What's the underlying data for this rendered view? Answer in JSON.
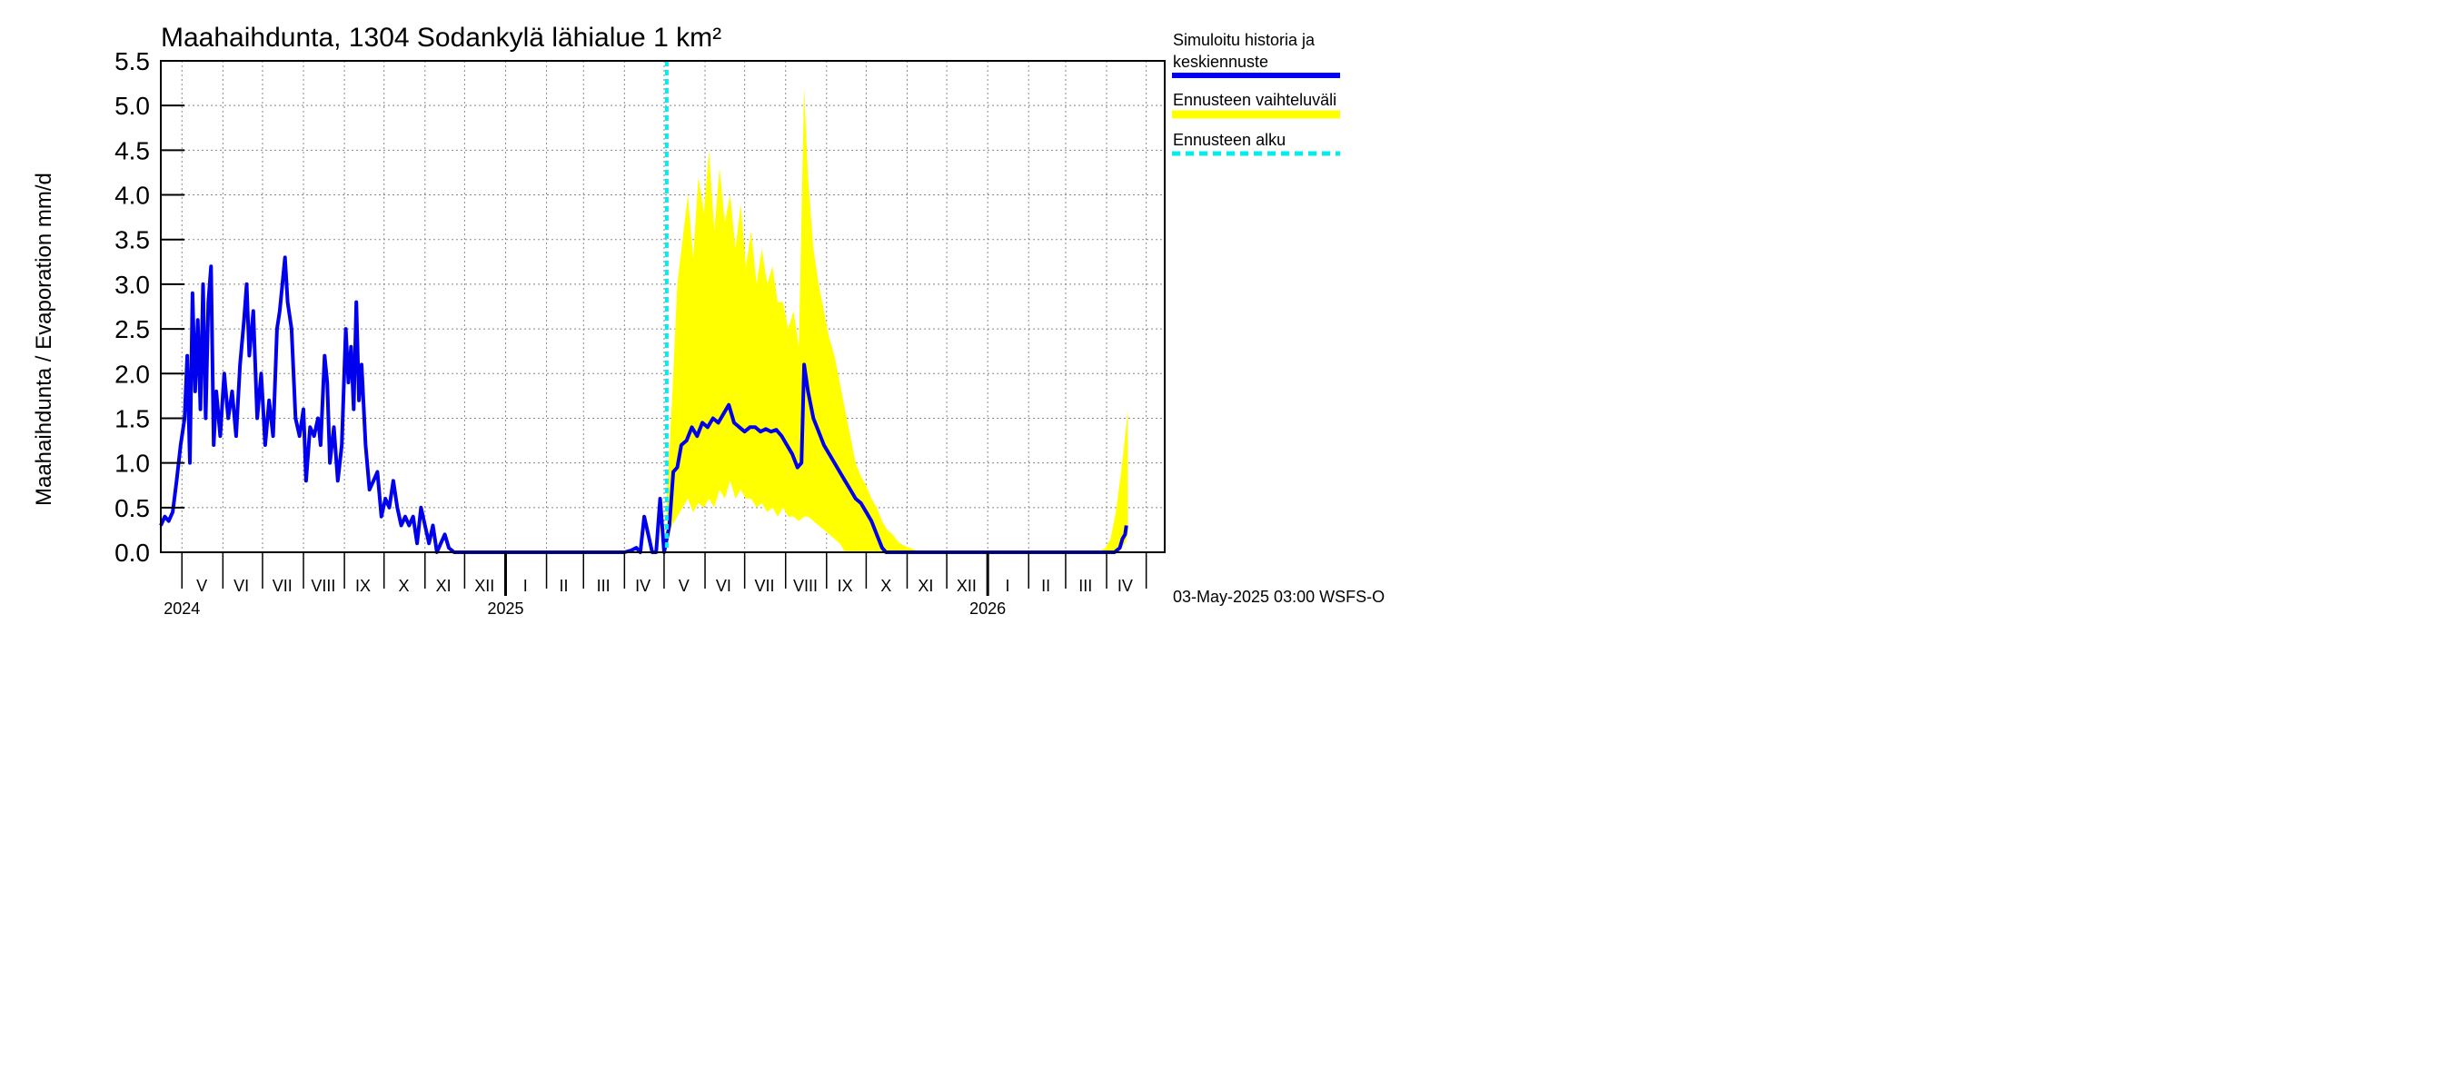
{
  "chart_data": {
    "type": "line",
    "title": "Maahaihdunta, 1304 Sodankylä lähialue 1 km²",
    "ylabel": "Maahaihdunta / Evaporation   mm/d",
    "ylim": [
      0,
      5.5
    ],
    "y_ticks": [
      "0.0",
      "0.5",
      "1.0",
      "1.5",
      "2.0",
      "2.5",
      "3.0",
      "3.5",
      "4.0",
      "4.5",
      "5.0",
      "5.5"
    ],
    "x_start": "2024-04-15",
    "x_end": "2026-05-15",
    "month_labels": [
      {
        "label": "V",
        "date": "2024-05-16"
      },
      {
        "label": "VI",
        "date": "2024-06-15"
      },
      {
        "label": "VII",
        "date": "2024-07-16"
      },
      {
        "label": "VIII",
        "date": "2024-08-16"
      },
      {
        "label": "IX",
        "date": "2024-09-15"
      },
      {
        "label": "X",
        "date": "2024-10-16"
      },
      {
        "label": "XI",
        "date": "2024-11-15"
      },
      {
        "label": "XII",
        "date": "2024-12-16"
      },
      {
        "label": "I",
        "date": "2025-01-16"
      },
      {
        "label": "II",
        "date": "2025-02-14"
      },
      {
        "label": "III",
        "date": "2025-03-16"
      },
      {
        "label": "IV",
        "date": "2025-04-15"
      },
      {
        "label": "V",
        "date": "2025-05-16"
      },
      {
        "label": "VI",
        "date": "2025-06-15"
      },
      {
        "label": "VII",
        "date": "2025-07-16"
      },
      {
        "label": "VIII",
        "date": "2025-08-16"
      },
      {
        "label": "IX",
        "date": "2025-09-15"
      },
      {
        "label": "X",
        "date": "2025-10-16"
      },
      {
        "label": "XI",
        "date": "2025-11-15"
      },
      {
        "label": "XII",
        "date": "2025-12-16"
      },
      {
        "label": "I",
        "date": "2026-01-16"
      },
      {
        "label": "II",
        "date": "2026-02-14"
      },
      {
        "label": "III",
        "date": "2026-03-16"
      },
      {
        "label": "IV",
        "date": "2026-04-15"
      }
    ],
    "year_labels": [
      {
        "label": "2024",
        "date": "2024-05-01"
      },
      {
        "label": "2025",
        "date": "2025-01-01"
      },
      {
        "label": "2026",
        "date": "2026-01-01"
      }
    ],
    "forecast_start": "2025-05-03",
    "series": [
      {
        "name": "Simuloitu historia ja keskiennuste",
        "color": "#0000ee",
        "points": [
          [
            "2024-04-15",
            0.3
          ],
          [
            "2024-04-18",
            0.4
          ],
          [
            "2024-04-21",
            0.35
          ],
          [
            "2024-04-24",
            0.45
          ],
          [
            "2024-04-27",
            0.8
          ],
          [
            "2024-04-30",
            1.2
          ],
          [
            "2024-05-03",
            1.5
          ],
          [
            "2024-05-05",
            2.2
          ],
          [
            "2024-05-07",
            1.0
          ],
          [
            "2024-05-09",
            2.9
          ],
          [
            "2024-05-11",
            1.8
          ],
          [
            "2024-05-13",
            2.6
          ],
          [
            "2024-05-15",
            1.6
          ],
          [
            "2024-05-17",
            3.0
          ],
          [
            "2024-05-19",
            1.5
          ],
          [
            "2024-05-21",
            2.8
          ],
          [
            "2024-05-23",
            3.2
          ],
          [
            "2024-05-25",
            1.2
          ],
          [
            "2024-05-27",
            1.8
          ],
          [
            "2024-05-30",
            1.3
          ],
          [
            "2024-06-02",
            2.0
          ],
          [
            "2024-06-05",
            1.5
          ],
          [
            "2024-06-08",
            1.8
          ],
          [
            "2024-06-11",
            1.3
          ],
          [
            "2024-06-14",
            2.1
          ],
          [
            "2024-06-17",
            2.6
          ],
          [
            "2024-06-19",
            3.0
          ],
          [
            "2024-06-21",
            2.2
          ],
          [
            "2024-06-24",
            2.7
          ],
          [
            "2024-06-27",
            1.5
          ],
          [
            "2024-06-30",
            2.0
          ],
          [
            "2024-07-03",
            1.2
          ],
          [
            "2024-07-06",
            1.7
          ],
          [
            "2024-07-09",
            1.3
          ],
          [
            "2024-07-12",
            2.5
          ],
          [
            "2024-07-14",
            2.7
          ],
          [
            "2024-07-16",
            3.0
          ],
          [
            "2024-07-18",
            3.3
          ],
          [
            "2024-07-20",
            2.8
          ],
          [
            "2024-07-23",
            2.5
          ],
          [
            "2024-07-26",
            1.5
          ],
          [
            "2024-07-29",
            1.3
          ],
          [
            "2024-08-01",
            1.6
          ],
          [
            "2024-08-03",
            0.8
          ],
          [
            "2024-08-06",
            1.4
          ],
          [
            "2024-08-09",
            1.3
          ],
          [
            "2024-08-12",
            1.5
          ],
          [
            "2024-08-14",
            1.2
          ],
          [
            "2024-08-17",
            2.2
          ],
          [
            "2024-08-19",
            1.9
          ],
          [
            "2024-08-21",
            1.0
          ],
          [
            "2024-08-24",
            1.4
          ],
          [
            "2024-08-27",
            0.8
          ],
          [
            "2024-08-30",
            1.2
          ],
          [
            "2024-09-02",
            2.5
          ],
          [
            "2024-09-04",
            1.9
          ],
          [
            "2024-09-06",
            2.3
          ],
          [
            "2024-09-08",
            1.6
          ],
          [
            "2024-09-10",
            2.8
          ],
          [
            "2024-09-12",
            1.7
          ],
          [
            "2024-09-14",
            2.1
          ],
          [
            "2024-09-17",
            1.2
          ],
          [
            "2024-09-20",
            0.7
          ],
          [
            "2024-09-23",
            0.8
          ],
          [
            "2024-09-26",
            0.9
          ],
          [
            "2024-09-29",
            0.4
          ],
          [
            "2024-10-02",
            0.6
          ],
          [
            "2024-10-05",
            0.5
          ],
          [
            "2024-10-08",
            0.8
          ],
          [
            "2024-10-11",
            0.5
          ],
          [
            "2024-10-14",
            0.3
          ],
          [
            "2024-10-17",
            0.4
          ],
          [
            "2024-10-20",
            0.3
          ],
          [
            "2024-10-23",
            0.4
          ],
          [
            "2024-10-26",
            0.1
          ],
          [
            "2024-10-29",
            0.5
          ],
          [
            "2024-11-01",
            0.3
          ],
          [
            "2024-11-04",
            0.1
          ],
          [
            "2024-11-07",
            0.3
          ],
          [
            "2024-11-10",
            0.0
          ],
          [
            "2024-11-13",
            0.1
          ],
          [
            "2024-11-16",
            0.2
          ],
          [
            "2024-11-19",
            0.05
          ],
          [
            "2024-11-23",
            0.0
          ],
          [
            "2025-04-01",
            0.0
          ],
          [
            "2025-04-06",
            0.02
          ],
          [
            "2025-04-10",
            0.05
          ],
          [
            "2025-04-13",
            0.0
          ],
          [
            "2025-04-16",
            0.4
          ],
          [
            "2025-04-19",
            0.2
          ],
          [
            "2025-04-22",
            0.0
          ],
          [
            "2025-04-25",
            0.0
          ],
          [
            "2025-04-28",
            0.6
          ],
          [
            "2025-05-01",
            0.0
          ],
          [
            "2025-05-05",
            0.3
          ],
          [
            "2025-05-08",
            0.9
          ],
          [
            "2025-05-11",
            0.95
          ],
          [
            "2025-05-14",
            1.2
          ],
          [
            "2025-05-18",
            1.25
          ],
          [
            "2025-05-22",
            1.4
          ],
          [
            "2025-05-26",
            1.3
          ],
          [
            "2025-05-30",
            1.45
          ],
          [
            "2025-06-03",
            1.4
          ],
          [
            "2025-06-07",
            1.5
          ],
          [
            "2025-06-11",
            1.45
          ],
          [
            "2025-06-15",
            1.55
          ],
          [
            "2025-06-19",
            1.65
          ],
          [
            "2025-06-23",
            1.45
          ],
          [
            "2025-06-27",
            1.4
          ],
          [
            "2025-07-01",
            1.35
          ],
          [
            "2025-07-05",
            1.4
          ],
          [
            "2025-07-09",
            1.4
          ],
          [
            "2025-07-13",
            1.35
          ],
          [
            "2025-07-17",
            1.38
          ],
          [
            "2025-07-21",
            1.35
          ],
          [
            "2025-07-25",
            1.37
          ],
          [
            "2025-07-29",
            1.3
          ],
          [
            "2025-08-02",
            1.2
          ],
          [
            "2025-08-06",
            1.1
          ],
          [
            "2025-08-10",
            0.95
          ],
          [
            "2025-08-13",
            1.0
          ],
          [
            "2025-08-15",
            2.1
          ],
          [
            "2025-08-18",
            1.8
          ],
          [
            "2025-08-22",
            1.5
          ],
          [
            "2025-08-26",
            1.35
          ],
          [
            "2025-08-30",
            1.2
          ],
          [
            "2025-09-03",
            1.1
          ],
          [
            "2025-09-07",
            1.0
          ],
          [
            "2025-09-11",
            0.9
          ],
          [
            "2025-09-15",
            0.8
          ],
          [
            "2025-09-19",
            0.7
          ],
          [
            "2025-09-23",
            0.6
          ],
          [
            "2025-09-27",
            0.55
          ],
          [
            "2025-10-01",
            0.45
          ],
          [
            "2025-10-05",
            0.35
          ],
          [
            "2025-10-09",
            0.2
          ],
          [
            "2025-10-13",
            0.05
          ],
          [
            "2025-10-16",
            0.0
          ],
          [
            "2026-04-07",
            0.0
          ],
          [
            "2026-04-11",
            0.05
          ],
          [
            "2026-04-13",
            0.15
          ],
          [
            "2026-04-15",
            0.2
          ],
          [
            "2026-04-16",
            0.3
          ]
        ]
      },
      {
        "name": "Ennusteen vaihteluväli",
        "color": "#ffff00",
        "band": [
          [
            "2025-05-03",
            0.1,
            0.6
          ],
          [
            "2025-05-07",
            0.3,
            1.7
          ],
          [
            "2025-05-11",
            0.4,
            3.0
          ],
          [
            "2025-05-15",
            0.5,
            3.5
          ],
          [
            "2025-05-19",
            0.6,
            4.0
          ],
          [
            "2025-05-23",
            0.45,
            3.3
          ],
          [
            "2025-05-27",
            0.55,
            4.2
          ],
          [
            "2025-05-31",
            0.5,
            3.8
          ],
          [
            "2025-06-04",
            0.6,
            4.5
          ],
          [
            "2025-06-08",
            0.5,
            3.6
          ],
          [
            "2025-06-12",
            0.7,
            4.3
          ],
          [
            "2025-06-16",
            0.6,
            3.7
          ],
          [
            "2025-06-20",
            0.8,
            4.0
          ],
          [
            "2025-06-24",
            0.6,
            3.4
          ],
          [
            "2025-06-28",
            0.7,
            3.9
          ],
          [
            "2025-07-02",
            0.6,
            3.2
          ],
          [
            "2025-07-06",
            0.6,
            3.6
          ],
          [
            "2025-07-10",
            0.5,
            3.0
          ],
          [
            "2025-07-14",
            0.55,
            3.4
          ],
          [
            "2025-07-18",
            0.45,
            3.0
          ],
          [
            "2025-07-22",
            0.5,
            3.2
          ],
          [
            "2025-07-26",
            0.4,
            2.8
          ],
          [
            "2025-07-30",
            0.5,
            2.8
          ],
          [
            "2025-08-03",
            0.4,
            2.5
          ],
          [
            "2025-08-07",
            0.4,
            2.7
          ],
          [
            "2025-08-11",
            0.35,
            2.3
          ],
          [
            "2025-08-15",
            0.4,
            5.2
          ],
          [
            "2025-08-18",
            0.4,
            4.2
          ],
          [
            "2025-08-22",
            0.35,
            3.4
          ],
          [
            "2025-08-26",
            0.3,
            3.0
          ],
          [
            "2025-08-30",
            0.25,
            2.7
          ],
          [
            "2025-09-03",
            0.2,
            2.4
          ],
          [
            "2025-09-07",
            0.15,
            2.2
          ],
          [
            "2025-09-11",
            0.1,
            1.9
          ],
          [
            "2025-09-15",
            0.0,
            1.6
          ],
          [
            "2025-09-19",
            0.0,
            1.3
          ],
          [
            "2025-09-23",
            0.0,
            1.0
          ],
          [
            "2025-09-27",
            0.0,
            0.85
          ],
          [
            "2025-10-01",
            0.0,
            0.75
          ],
          [
            "2025-10-05",
            0.0,
            0.6
          ],
          [
            "2025-10-09",
            0.0,
            0.5
          ],
          [
            "2025-10-13",
            0.0,
            0.35
          ],
          [
            "2025-10-17",
            0.0,
            0.25
          ],
          [
            "2025-10-21",
            0.0,
            0.2
          ],
          [
            "2025-10-25",
            0.0,
            0.12
          ],
          [
            "2025-10-29",
            0.0,
            0.08
          ],
          [
            "2025-11-03",
            0.0,
            0.05
          ],
          [
            "2025-11-08",
            0.0,
            0.02
          ],
          [
            "2025-11-13",
            0.0,
            0.0
          ],
          [
            "2026-03-26",
            0.0,
            0.0
          ],
          [
            "2026-03-31",
            0.0,
            0.05
          ],
          [
            "2026-04-04",
            0.0,
            0.15
          ],
          [
            "2026-04-08",
            0.0,
            0.45
          ],
          [
            "2026-04-12",
            0.05,
            0.9
          ],
          [
            "2026-04-15",
            0.1,
            1.3
          ],
          [
            "2026-04-17",
            0.2,
            1.6
          ]
        ]
      }
    ],
    "grid": true,
    "legend_placement": "right"
  },
  "legend": {
    "item1_line1": "Simuloitu historia ja",
    "item1_line2": "keskiennuste",
    "item2": "Ennusteen vaihteluväli",
    "item3": "Ennusteen alku",
    "color_mean": "#0000ee",
    "color_band": "#ffff00",
    "color_start": "#00eeee"
  },
  "footer": "03-May-2025 03:00 WSFS-O"
}
